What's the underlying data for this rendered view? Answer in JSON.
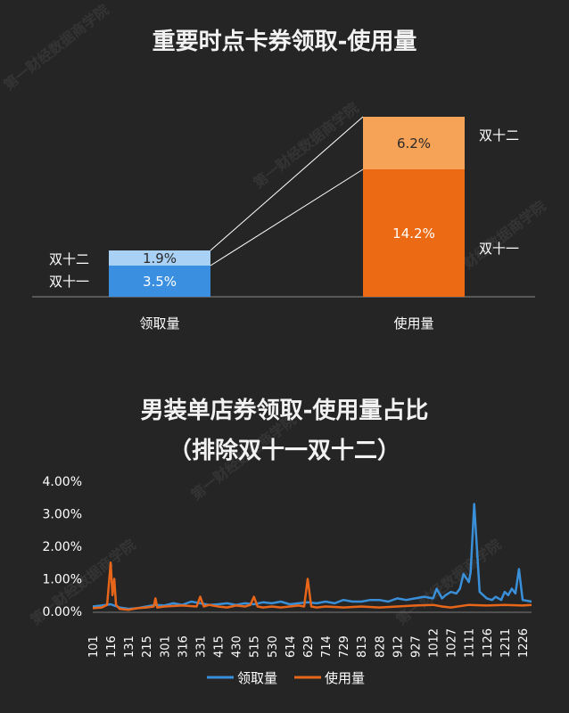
{
  "chart_data": [
    {
      "type": "bar",
      "title": "重要时点卡券领取-使用量",
      "categories": [
        "领取量",
        "使用量"
      ],
      "series": [
        {
          "name": "双十一",
          "values": [
            3.5,
            14.2
          ],
          "labels": [
            "3.5%",
            "14.2%"
          ]
        },
        {
          "name": "双十二",
          "values": [
            1.9,
            6.2
          ],
          "labels": [
            "1.9%",
            "6.2%"
          ]
        }
      ],
      "stacked": true,
      "colors": {
        "receive_11": "#3b8fe0",
        "receive_12": "#a9d1f5",
        "use_11": "#ec6a14",
        "use_12": "#f6a257"
      }
    },
    {
      "type": "line",
      "title_line1": "男装单店券领取-使用量占比",
      "title_line2": "（排除双十一双十二）",
      "x_tick_labels": [
        "101",
        "116",
        "131",
        "215",
        "301",
        "316",
        "331",
        "415",
        "430",
        "515",
        "530",
        "614",
        "629",
        "714",
        "729",
        "813",
        "828",
        "912",
        "927",
        "1012",
        "1027",
        "1111",
        "1126",
        "1211",
        "1226"
      ],
      "y_tick_labels": [
        "0.00%",
        "1.00%",
        "2.00%",
        "3.00%",
        "4.00%"
      ],
      "ylim": [
        0,
        4
      ],
      "grid": false,
      "legend_position": "bottom",
      "series": [
        {
          "name": "领取量",
          "color": "#3a8fd9",
          "x": [
            0,
            0.5,
            1,
            1.5,
            2,
            2.5,
            3,
            3.5,
            4,
            4.5,
            5,
            5.5,
            6,
            6.5,
            7,
            7.5,
            8,
            8.5,
            9,
            9.5,
            10,
            10.5,
            11,
            11.5,
            12,
            12.5,
            13,
            13.5,
            14,
            14.5,
            15,
            15.5,
            16,
            16.5,
            17,
            17.5,
            18,
            18.5,
            19,
            19.2,
            19.5,
            19.7,
            20,
            20.3,
            20.5,
            20.7,
            21,
            21.1,
            21.3,
            21.6,
            22,
            22.3,
            22.5,
            22.8,
            23,
            23.2,
            23.4,
            23.6,
            23.8,
            24,
            24.5
          ],
          "y": [
            0.15,
            0.18,
            0.22,
            0.12,
            0.08,
            0.1,
            0.15,
            0.2,
            0.18,
            0.25,
            0.2,
            0.3,
            0.25,
            0.2,
            0.22,
            0.25,
            0.2,
            0.25,
            0.22,
            0.28,
            0.25,
            0.3,
            0.22,
            0.25,
            0.28,
            0.25,
            0.3,
            0.25,
            0.35,
            0.3,
            0.3,
            0.35,
            0.35,
            0.3,
            0.4,
            0.35,
            0.4,
            0.45,
            0.4,
            0.7,
            0.4,
            0.5,
            0.6,
            0.55,
            0.7,
            1.15,
            0.9,
            1.2,
            3.3,
            0.6,
            0.4,
            0.35,
            0.45,
            0.35,
            0.6,
            0.5,
            0.7,
            0.55,
            1.3,
            0.35,
            0.3
          ]
        },
        {
          "name": "使用量",
          "color": "#e8661a",
          "x": [
            0,
            0.5,
            0.8,
            1,
            1.1,
            1.2,
            1.3,
            1.5,
            2,
            2.5,
            3,
            3.4,
            3.5,
            3.6,
            4,
            5,
            5.8,
            6,
            6.2,
            6.5,
            7,
            7.5,
            8,
            8.5,
            8.8,
            9,
            9.2,
            9.5,
            10,
            10.5,
            11,
            11.5,
            11.8,
            12,
            12.2,
            12.5,
            13,
            14,
            15,
            16,
            17,
            18,
            19,
            19.5,
            20,
            21,
            22,
            23,
            24,
            24.5
          ],
          "y": [
            0.1,
            0.12,
            0.2,
            1.5,
            0.5,
            1.0,
            0.2,
            0.08,
            0.05,
            0.1,
            0.12,
            0.15,
            0.4,
            0.12,
            0.15,
            0.18,
            0.15,
            0.45,
            0.15,
            0.2,
            0.15,
            0.12,
            0.18,
            0.15,
            0.2,
            0.45,
            0.15,
            0.12,
            0.15,
            0.12,
            0.15,
            0.18,
            0.15,
            1.0,
            0.15,
            0.12,
            0.15,
            0.12,
            0.15,
            0.12,
            0.15,
            0.18,
            0.2,
            0.15,
            0.12,
            0.2,
            0.18,
            0.2,
            0.18,
            0.2
          ]
        }
      ]
    }
  ],
  "watermarks": [
    "第一财经数据商学院",
    "YICAI DATA SCHOOL"
  ]
}
